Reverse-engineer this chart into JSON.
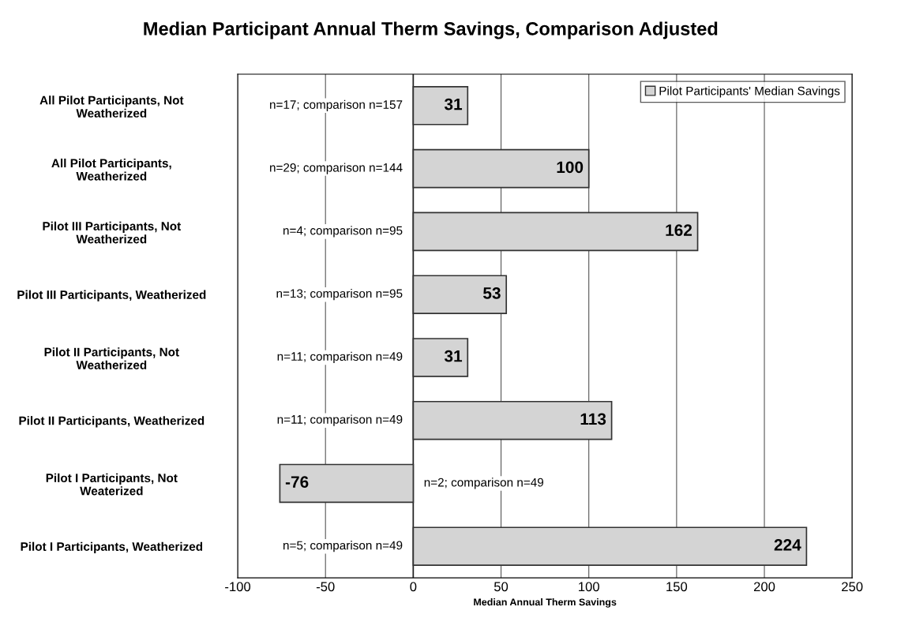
{
  "chart_data": {
    "type": "bar",
    "orientation": "horizontal",
    "title": "Median Participant Annual Therm Savings, Comparison Adjusted",
    "xlabel": "Median Annual Therm Savings",
    "categories": [
      "All Pilot Participants, Not\nWeatherized",
      "All Pilot Participants,\nWeatherized",
      "Pilot III Participants, Not\nWeatherized",
      "Pilot III Participants, Weatherized",
      "Pilot II Participants, Not\nWeatherized",
      "Pilot II Participants, Weatherized",
      "Pilot I Participants, Not\nWeaterized",
      "Pilot I Participants, Weatherized"
    ],
    "series": [
      {
        "name": "Pilot Participants' Median Savings",
        "color": "#d4d4d4",
        "values": [
          31,
          100,
          162,
          53,
          31,
          113,
          -76,
          224
        ]
      }
    ],
    "data_labels": true,
    "xlim": [
      -100,
      250
    ],
    "xticks": [
      -100,
      -50,
      0,
      50,
      100,
      150,
      200,
      250
    ],
    "grid": "x",
    "legend": "top right",
    "annotations": [
      "n=17; comparison n=157",
      "n=29; comparison n=144",
      "n=4; comparison n=95",
      "n=13; comparison n=95",
      "n=11; comparison n=49",
      "n=11; comparison n=49",
      "n=2; comparison n=49",
      "n=5; comparison n=49"
    ]
  }
}
